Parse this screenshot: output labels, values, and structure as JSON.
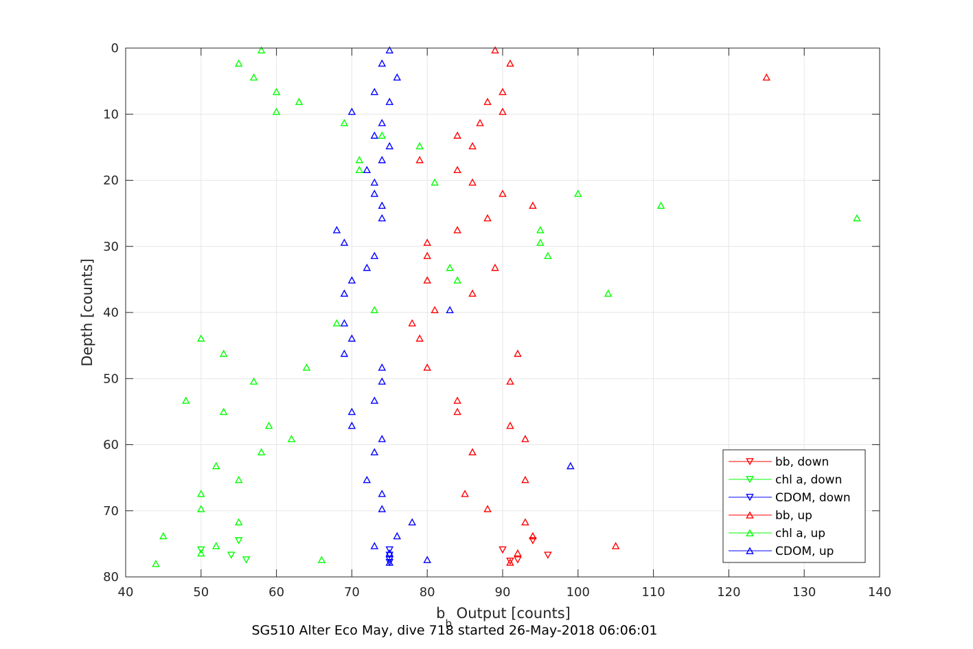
{
  "chart_data": {
    "type": "scatter",
    "caption": "SG510 Alter Eco May, dive 718 started 26-May-2018 06:06:01",
    "xlabel_main": "b",
    "xlabel_sub": "b",
    "xlabel_rest": " Output [counts]",
    "ylabel": "Depth [counts]",
    "xlim": [
      40,
      140
    ],
    "ylim": [
      0,
      80
    ],
    "y_reversed": true,
    "grid": true,
    "legend_position": "bottom-right",
    "xticks": [
      "40",
      "50",
      "60",
      "70",
      "80",
      "90",
      "100",
      "110",
      "120",
      "130",
      "140"
    ],
    "yticks": [
      "0",
      "10",
      "20",
      "30",
      "40",
      "50",
      "60",
      "70",
      "80"
    ],
    "colors": {
      "red": "#ff0000",
      "green": "#00ff00",
      "blue": "#0000ff",
      "axis": "#262626",
      "grid": "#e6e6e6"
    },
    "legend": [
      {
        "label": "bb, down",
        "color": "#ff0000",
        "marker": "triangle-down"
      },
      {
        "label": "chl a, down",
        "color": "#00ff00",
        "marker": "triangle-down"
      },
      {
        "label": "CDOM, down",
        "color": "#0000ff",
        "marker": "triangle-down"
      },
      {
        "label": "bb, up",
        "color": "#ff0000",
        "marker": "triangle-up"
      },
      {
        "label": "chl a, up",
        "color": "#00ff00",
        "marker": "triangle-up"
      },
      {
        "label": "CDOM, up",
        "color": "#0000ff",
        "marker": "triangle-up"
      }
    ],
    "series": [
      {
        "name": "bb, down",
        "color": "#ff0000",
        "marker": "triangle-down",
        "points": [
          [
            90,
            75.9
          ],
          [
            96,
            76.7
          ],
          [
            92,
            77.4
          ],
          [
            91,
            77.6
          ],
          [
            94,
            74.5
          ]
        ]
      },
      {
        "name": "chl a, down",
        "color": "#00ff00",
        "marker": "triangle-down",
        "points": [
          [
            50,
            75.9
          ],
          [
            54,
            76.7
          ],
          [
            56,
            77.4
          ],
          [
            55,
            74.5
          ]
        ]
      },
      {
        "name": "CDOM, down",
        "color": "#0000ff",
        "marker": "triangle-down",
        "points": [
          [
            75,
            75.9
          ],
          [
            75,
            76.7
          ],
          [
            75,
            77.4
          ],
          [
            75,
            77.8
          ]
        ]
      },
      {
        "name": "bb, up",
        "color": "#ff0000",
        "marker": "triangle-up",
        "points": [
          [
            89,
            0.3
          ],
          [
            91,
            2.3
          ],
          [
            125,
            4.4
          ],
          [
            90,
            6.6
          ],
          [
            88,
            8.1
          ],
          [
            90,
            9.6
          ],
          [
            87,
            11.3
          ],
          [
            84,
            13.2
          ],
          [
            86,
            14.8
          ],
          [
            79,
            16.9
          ],
          [
            84,
            18.4
          ],
          [
            86,
            20.3
          ],
          [
            90,
            22.0
          ],
          [
            94,
            23.8
          ],
          [
            88,
            25.7
          ],
          [
            84,
            27.5
          ],
          [
            80,
            29.4
          ],
          [
            80,
            31.4
          ],
          [
            89,
            33.2
          ],
          [
            80,
            35.1
          ],
          [
            86,
            37.1
          ],
          [
            81,
            39.6
          ],
          [
            78,
            41.6
          ],
          [
            79,
            43.9
          ],
          [
            92,
            46.2
          ],
          [
            80,
            48.3
          ],
          [
            91,
            50.4
          ],
          [
            84,
            53.3
          ],
          [
            84,
            55.0
          ],
          [
            91,
            57.1
          ],
          [
            93,
            59.1
          ],
          [
            86,
            61.1
          ],
          [
            93,
            65.3
          ],
          [
            85,
            67.4
          ],
          [
            88,
            69.7
          ],
          [
            93,
            71.7
          ],
          [
            94,
            73.8
          ],
          [
            105,
            75.3
          ],
          [
            92,
            76.4
          ],
          [
            91,
            77.8
          ]
        ]
      },
      {
        "name": "chl a, up",
        "color": "#00ff00",
        "marker": "triangle-up",
        "points": [
          [
            58,
            0.3
          ],
          [
            55,
            2.3
          ],
          [
            57,
            4.4
          ],
          [
            60,
            6.6
          ],
          [
            63,
            8.1
          ],
          [
            60,
            9.6
          ],
          [
            69,
            11.3
          ],
          [
            74,
            13.2
          ],
          [
            79,
            14.8
          ],
          [
            71,
            16.9
          ],
          [
            71,
            18.4
          ],
          [
            81,
            20.3
          ],
          [
            100,
            22.0
          ],
          [
            111,
            23.8
          ],
          [
            137,
            25.7
          ],
          [
            95,
            27.5
          ],
          [
            95,
            29.4
          ],
          [
            96,
            31.4
          ],
          [
            83,
            33.2
          ],
          [
            84,
            35.1
          ],
          [
            104,
            37.1
          ],
          [
            73,
            39.6
          ],
          [
            68,
            41.6
          ],
          [
            50,
            43.9
          ],
          [
            53,
            46.2
          ],
          [
            64,
            48.3
          ],
          [
            57,
            50.4
          ],
          [
            48,
            53.3
          ],
          [
            53,
            55.0
          ],
          [
            59,
            57.1
          ],
          [
            62,
            59.1
          ],
          [
            58,
            61.1
          ],
          [
            52,
            63.2
          ],
          [
            55,
            65.3
          ],
          [
            50,
            67.4
          ],
          [
            50,
            69.7
          ],
          [
            55,
            71.7
          ],
          [
            45,
            73.8
          ],
          [
            52,
            75.3
          ],
          [
            50,
            76.4
          ],
          [
            66,
            77.4
          ],
          [
            44,
            78.0
          ]
        ]
      },
      {
        "name": "CDOM, up",
        "color": "#0000ff",
        "marker": "triangle-up",
        "points": [
          [
            75,
            0.3
          ],
          [
            74,
            2.3
          ],
          [
            76,
            4.4
          ],
          [
            73,
            6.6
          ],
          [
            75,
            8.1
          ],
          [
            70,
            9.6
          ],
          [
            74,
            11.3
          ],
          [
            73,
            13.2
          ],
          [
            75,
            14.8
          ],
          [
            74,
            16.9
          ],
          [
            72,
            18.4
          ],
          [
            73,
            20.3
          ],
          [
            73,
            22.0
          ],
          [
            74,
            23.8
          ],
          [
            74,
            25.7
          ],
          [
            68,
            27.5
          ],
          [
            69,
            29.4
          ],
          [
            73,
            31.4
          ],
          [
            72,
            33.2
          ],
          [
            70,
            35.1
          ],
          [
            69,
            37.1
          ],
          [
            83,
            39.6
          ],
          [
            69,
            41.6
          ],
          [
            70,
            43.9
          ],
          [
            69,
            46.2
          ],
          [
            74,
            48.3
          ],
          [
            74,
            50.4
          ],
          [
            73,
            53.3
          ],
          [
            70,
            55.0
          ],
          [
            70,
            57.1
          ],
          [
            74,
            59.1
          ],
          [
            73,
            61.1
          ],
          [
            99,
            63.2
          ],
          [
            72,
            65.3
          ],
          [
            74,
            67.4
          ],
          [
            74,
            69.7
          ],
          [
            78,
            71.7
          ],
          [
            76,
            73.8
          ],
          [
            73,
            75.3
          ],
          [
            75,
            76.4
          ],
          [
            80,
            77.4
          ],
          [
            75,
            77.8
          ]
        ]
      }
    ]
  }
}
